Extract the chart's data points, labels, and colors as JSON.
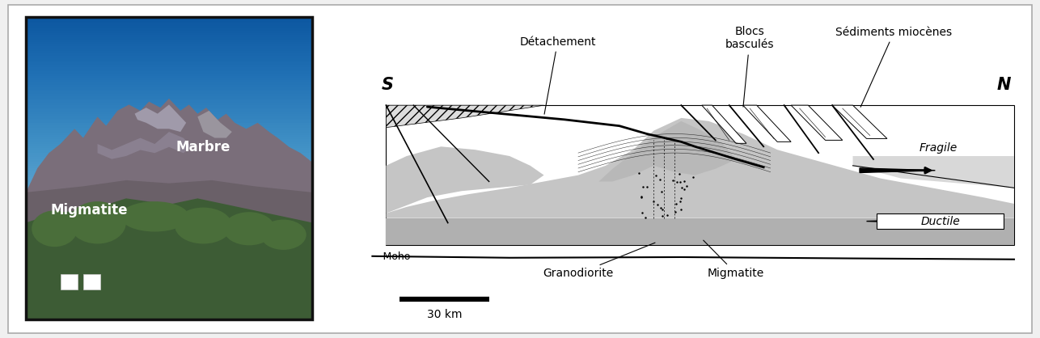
{
  "background_color": "#f0f0f0",
  "photo_label_migmatite": "Migmatite",
  "photo_label_marbre": "Marbre",
  "photo_label_color": "#ffffff",
  "photo_label_fontsize": 12,
  "diagram_label_S": "S",
  "diagram_label_N": "N",
  "diagram_label_SN_fontsize": 15,
  "label_detachement": "Détachement",
  "label_blocs": "Blocs\nbasculés",
  "label_sediments": "Sédiments miocènes",
  "label_fragile": "Fragile",
  "label_ductile": "Ductile",
  "label_moho": "- Moho",
  "label_granodiorite": "Granodiorite",
  "label_migmatite_diag": "Migmatite",
  "label_scale": "30 km",
  "annotation_fontsize": 10,
  "moho_fontsize": 9,
  "scale_fontsize": 10
}
